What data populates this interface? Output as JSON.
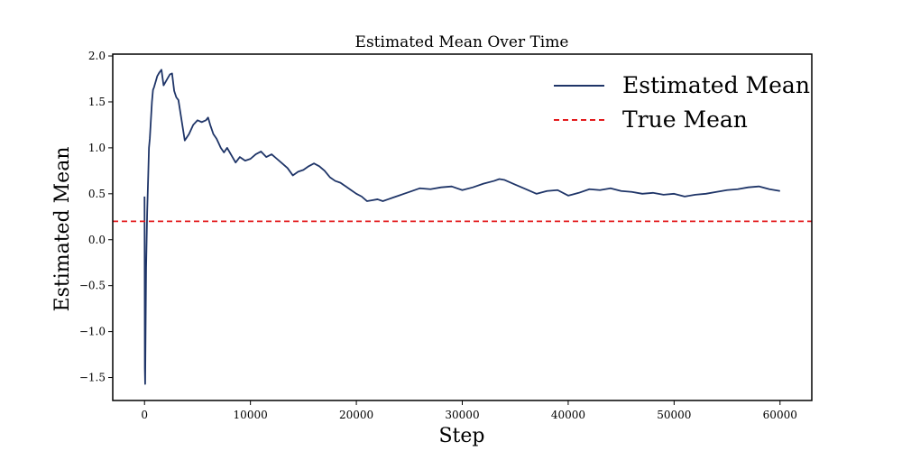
{
  "chart_data": {
    "type": "line",
    "title": "Estimated Mean Over Time",
    "xlabel": "Step",
    "ylabel": "Estimated Mean",
    "xlim": [
      -3000,
      63000
    ],
    "ylim": [
      -1.75,
      2.02
    ],
    "x_ticks": [
      0,
      10000,
      20000,
      30000,
      40000,
      50000,
      60000
    ],
    "x_tick_labels": [
      "0",
      "10000",
      "20000",
      "30000",
      "40000",
      "50000",
      "60000"
    ],
    "y_ticks": [
      -1.5,
      -1.0,
      -0.5,
      0.0,
      0.5,
      1.0,
      1.5,
      2.0
    ],
    "y_tick_labels": [
      "−1.5",
      "−1.0",
      "−0.5",
      "0.0",
      "0.5",
      "1.0",
      "1.5",
      "2.0"
    ],
    "grid": false,
    "legend_position": "top-right",
    "series": [
      {
        "name": "Estimated Mean",
        "style": "solid",
        "color": "#1f3568",
        "x": [
          0,
          30,
          60,
          100,
          150,
          250,
          350,
          420,
          500,
          600,
          700,
          800,
          900,
          1000,
          1200,
          1400,
          1600,
          1800,
          2000,
          2200,
          2400,
          2600,
          2800,
          3000,
          3200,
          3500,
          3800,
          4200,
          4600,
          5000,
          5400,
          5800,
          6000,
          6200,
          6500,
          6800,
          7000,
          7200,
          7500,
          7800,
          8200,
          8600,
          9000,
          9500,
          10000,
          10500,
          11000,
          11500,
          12000,
          12500,
          13000,
          13500,
          14000,
          14500,
          15000,
          15500,
          16000,
          16500,
          17000,
          17500,
          18000,
          18500,
          19000,
          19500,
          20000,
          20500,
          21000,
          21500,
          22000,
          22500,
          23000,
          23500,
          24000,
          24500,
          25000,
          26000,
          27000,
          28000,
          29000,
          30000,
          31000,
          32000,
          33000,
          33500,
          34000,
          35000,
          36000,
          37000,
          38000,
          39000,
          40000,
          41000,
          42000,
          43000,
          44000,
          45000,
          46000,
          47000,
          48000,
          49000,
          50000,
          51000,
          52000,
          53000,
          54000,
          55000,
          56000,
          57000,
          58000,
          59000,
          60000
        ],
        "y": [
          0.47,
          -1.4,
          -1.57,
          -1.0,
          -0.3,
          0.3,
          0.7,
          1.0,
          1.1,
          1.3,
          1.5,
          1.63,
          1.66,
          1.7,
          1.78,
          1.82,
          1.85,
          1.68,
          1.72,
          1.76,
          1.8,
          1.81,
          1.62,
          1.55,
          1.52,
          1.3,
          1.08,
          1.15,
          1.25,
          1.3,
          1.28,
          1.3,
          1.33,
          1.25,
          1.15,
          1.1,
          1.05,
          1.0,
          0.95,
          1.0,
          0.92,
          0.84,
          0.9,
          0.86,
          0.88,
          0.93,
          0.96,
          0.9,
          0.93,
          0.88,
          0.83,
          0.78,
          0.7,
          0.74,
          0.76,
          0.8,
          0.83,
          0.8,
          0.75,
          0.68,
          0.64,
          0.62,
          0.58,
          0.54,
          0.5,
          0.47,
          0.42,
          0.43,
          0.44,
          0.42,
          0.44,
          0.46,
          0.48,
          0.5,
          0.52,
          0.56,
          0.55,
          0.57,
          0.58,
          0.54,
          0.57,
          0.61,
          0.64,
          0.66,
          0.65,
          0.6,
          0.55,
          0.5,
          0.53,
          0.54,
          0.48,
          0.51,
          0.55,
          0.54,
          0.56,
          0.53,
          0.52,
          0.5,
          0.51,
          0.49,
          0.5,
          0.47,
          0.49,
          0.5,
          0.52,
          0.54,
          0.55,
          0.57,
          0.58,
          0.55,
          0.53
        ]
      },
      {
        "name": "True Mean",
        "style": "dashed",
        "color": "#e31a1c",
        "y_constant": 0.2
      }
    ]
  }
}
